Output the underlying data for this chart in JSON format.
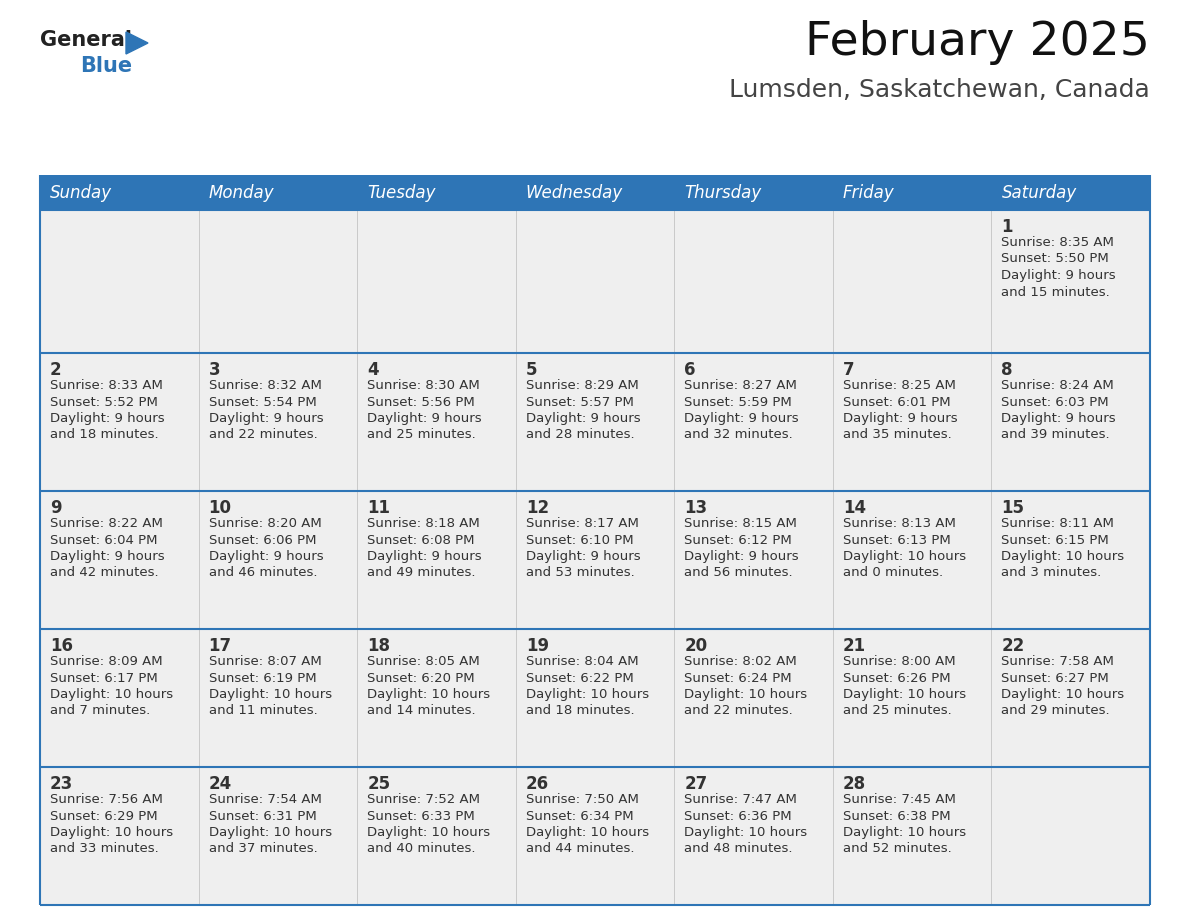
{
  "title": "February 2025",
  "subtitle": "Lumsden, Saskatchewan, Canada",
  "header_bg_color": "#2E75B6",
  "header_text_color": "#FFFFFF",
  "cell_bg_color": "#EFEFEF",
  "cell_text_color": "#333333",
  "day_num_color": "#333333",
  "border_color": "#2E75B6",
  "days_of_week": [
    "Sunday",
    "Monday",
    "Tuesday",
    "Wednesday",
    "Thursday",
    "Friday",
    "Saturday"
  ],
  "calendar_data": [
    [
      null,
      null,
      null,
      null,
      null,
      null,
      {
        "day": 1,
        "sunrise": "8:35 AM",
        "sunset": "5:50 PM",
        "daylight": "9 hours and 15 minutes."
      }
    ],
    [
      {
        "day": 2,
        "sunrise": "8:33 AM",
        "sunset": "5:52 PM",
        "daylight": "9 hours and 18 minutes."
      },
      {
        "day": 3,
        "sunrise": "8:32 AM",
        "sunset": "5:54 PM",
        "daylight": "9 hours and 22 minutes."
      },
      {
        "day": 4,
        "sunrise": "8:30 AM",
        "sunset": "5:56 PM",
        "daylight": "9 hours and 25 minutes."
      },
      {
        "day": 5,
        "sunrise": "8:29 AM",
        "sunset": "5:57 PM",
        "daylight": "9 hours and 28 minutes."
      },
      {
        "day": 6,
        "sunrise": "8:27 AM",
        "sunset": "5:59 PM",
        "daylight": "9 hours and 32 minutes."
      },
      {
        "day": 7,
        "sunrise": "8:25 AM",
        "sunset": "6:01 PM",
        "daylight": "9 hours and 35 minutes."
      },
      {
        "day": 8,
        "sunrise": "8:24 AM",
        "sunset": "6:03 PM",
        "daylight": "9 hours and 39 minutes."
      }
    ],
    [
      {
        "day": 9,
        "sunrise": "8:22 AM",
        "sunset": "6:04 PM",
        "daylight": "9 hours and 42 minutes."
      },
      {
        "day": 10,
        "sunrise": "8:20 AM",
        "sunset": "6:06 PM",
        "daylight": "9 hours and 46 minutes."
      },
      {
        "day": 11,
        "sunrise": "8:18 AM",
        "sunset": "6:08 PM",
        "daylight": "9 hours and 49 minutes."
      },
      {
        "day": 12,
        "sunrise": "8:17 AM",
        "sunset": "6:10 PM",
        "daylight": "9 hours and 53 minutes."
      },
      {
        "day": 13,
        "sunrise": "8:15 AM",
        "sunset": "6:12 PM",
        "daylight": "9 hours and 56 minutes."
      },
      {
        "day": 14,
        "sunrise": "8:13 AM",
        "sunset": "6:13 PM",
        "daylight": "10 hours and 0 minutes."
      },
      {
        "day": 15,
        "sunrise": "8:11 AM",
        "sunset": "6:15 PM",
        "daylight": "10 hours and 3 minutes."
      }
    ],
    [
      {
        "day": 16,
        "sunrise": "8:09 AM",
        "sunset": "6:17 PM",
        "daylight": "10 hours and 7 minutes."
      },
      {
        "day": 17,
        "sunrise": "8:07 AM",
        "sunset": "6:19 PM",
        "daylight": "10 hours and 11 minutes."
      },
      {
        "day": 18,
        "sunrise": "8:05 AM",
        "sunset": "6:20 PM",
        "daylight": "10 hours and 14 minutes."
      },
      {
        "day": 19,
        "sunrise": "8:04 AM",
        "sunset": "6:22 PM",
        "daylight": "10 hours and 18 minutes."
      },
      {
        "day": 20,
        "sunrise": "8:02 AM",
        "sunset": "6:24 PM",
        "daylight": "10 hours and 22 minutes."
      },
      {
        "day": 21,
        "sunrise": "8:00 AM",
        "sunset": "6:26 PM",
        "daylight": "10 hours and 25 minutes."
      },
      {
        "day": 22,
        "sunrise": "7:58 AM",
        "sunset": "6:27 PM",
        "daylight": "10 hours and 29 minutes."
      }
    ],
    [
      {
        "day": 23,
        "sunrise": "7:56 AM",
        "sunset": "6:29 PM",
        "daylight": "10 hours and 33 minutes."
      },
      {
        "day": 24,
        "sunrise": "7:54 AM",
        "sunset": "6:31 PM",
        "daylight": "10 hours and 37 minutes."
      },
      {
        "day": 25,
        "sunrise": "7:52 AM",
        "sunset": "6:33 PM",
        "daylight": "10 hours and 40 minutes."
      },
      {
        "day": 26,
        "sunrise": "7:50 AM",
        "sunset": "6:34 PM",
        "daylight": "10 hours and 44 minutes."
      },
      {
        "day": 27,
        "sunrise": "7:47 AM",
        "sunset": "6:36 PM",
        "daylight": "10 hours and 48 minutes."
      },
      {
        "day": 28,
        "sunrise": "7:45 AM",
        "sunset": "6:38 PM",
        "daylight": "10 hours and 52 minutes."
      },
      null
    ]
  ],
  "bg_color": "#FFFFFF",
  "title_fontsize": 34,
  "subtitle_fontsize": 18,
  "header_fontsize": 12,
  "day_num_fontsize": 12,
  "cell_text_fontsize": 9.5
}
